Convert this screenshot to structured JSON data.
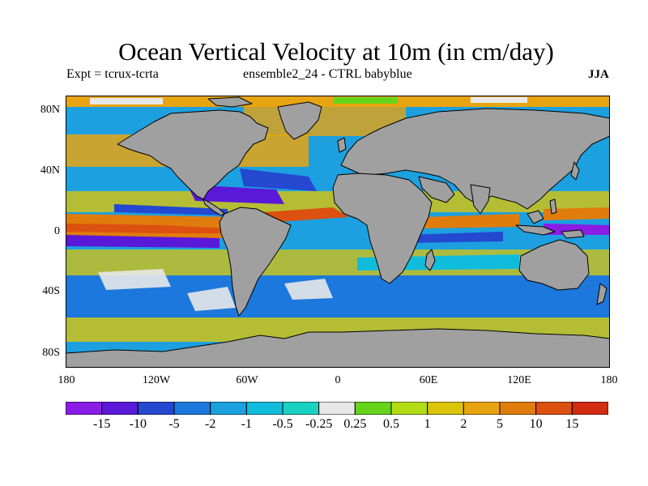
{
  "title": "Ocean Vertical Velocity at 10m (in cm/day)",
  "subtitle_left": "Expt = tcrux-tcrta",
  "subtitle_mid": "ensemble2_24 - CTRL babyblue",
  "season": "JJA",
  "y_axis_labels": [
    "80N",
    "40N",
    "0",
    "40S",
    "80S"
  ],
  "x_axis_labels": [
    "180",
    "120W",
    "60W",
    "0",
    "60E",
    "120E",
    "180"
  ],
  "colorbar": {
    "labels": [
      "-15",
      "-10",
      "-5",
      "-2",
      "-1",
      "-0.5",
      "-0.25",
      "0.25",
      "0.5",
      "1",
      "2",
      "5",
      "10",
      "15"
    ],
    "colors": [
      "#8a1ce6",
      "#5a18d8",
      "#2448d0",
      "#1c78dc",
      "#1ca0e0",
      "#10bcdc",
      "#1ad2c4",
      "#e8e8e8",
      "#66d41a",
      "#b4dc14",
      "#dcc40a",
      "#e8a410",
      "#e07c0c",
      "#dc5010",
      "#d42c10"
    ]
  },
  "colors": {
    "land": "#a0a0a0",
    "coast": "#000000"
  }
}
